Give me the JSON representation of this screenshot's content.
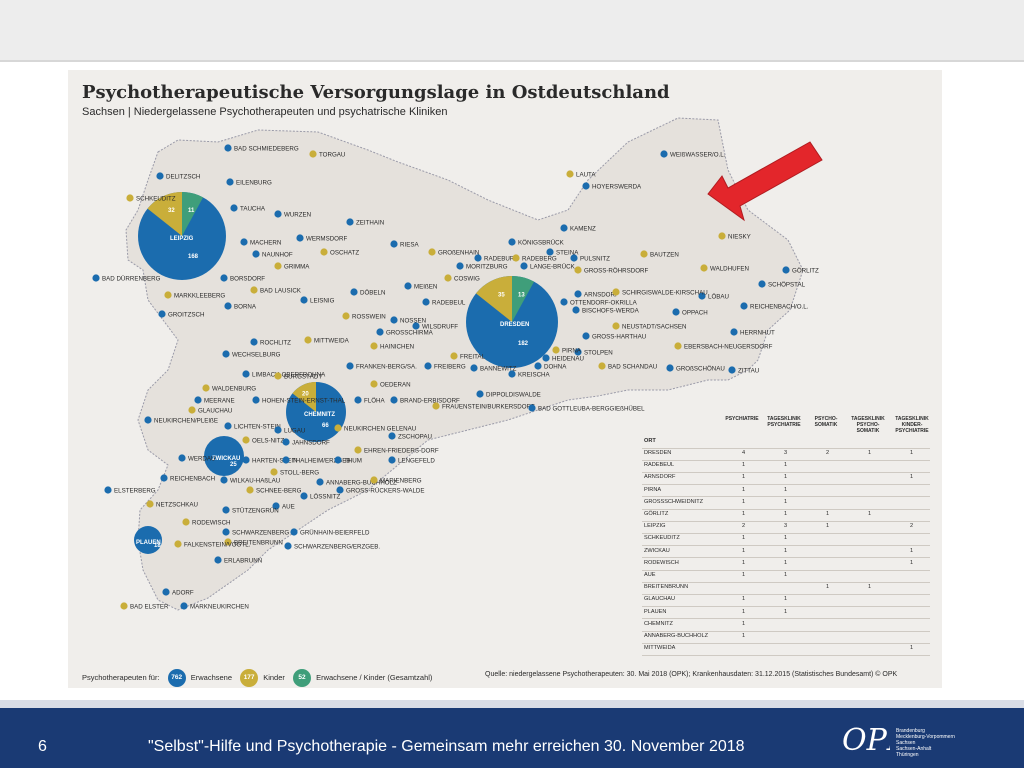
{
  "map": {
    "title": "Psychotherapeutische Versorgungslage in Ostdeutschland",
    "subtitle": "Sachsen | Niedergelassene Psychotherapeuten und psychatrische Kliniken",
    "colors": {
      "erwachsene": "#1b6cae",
      "kinder": "#c9ae3a",
      "gesamt": "#3f9e7a",
      "land": "#e5e1dc",
      "border": "#9a9aa8",
      "bg": "#f0eeeb"
    }
  },
  "cities": [
    {
      "name": "BAD SCHMIEDEBERG"
    },
    {
      "name": "TORGAU"
    },
    {
      "name": "DELITZSCH"
    },
    {
      "name": "EILENBURG"
    },
    {
      "name": "SCHKEUDITZ"
    },
    {
      "name": "TAUCHA"
    },
    {
      "name": "WURZEN"
    },
    {
      "name": "LEIPZIG"
    },
    {
      "name": "MACHERN"
    },
    {
      "name": "NAUNHOF"
    },
    {
      "name": "GRIMMA"
    },
    {
      "name": "BORSDORF"
    },
    {
      "name": "BAD DÜRRENBERG"
    },
    {
      "name": "MARKKLEEBERG"
    },
    {
      "name": "BORNA"
    },
    {
      "name": "GROITZSCH"
    },
    {
      "name": "BAD LAUSICK"
    },
    {
      "name": "LEISNIG"
    },
    {
      "name": "WERMSDORF"
    },
    {
      "name": "OSCHATZ"
    },
    {
      "name": "ZEITHAIN"
    },
    {
      "name": "RIESA"
    },
    {
      "name": "GROßENHAIN"
    },
    {
      "name": "KÖNIGSBRÜCK"
    },
    {
      "name": "KAMENZ"
    },
    {
      "name": "LAUTA"
    },
    {
      "name": "HOYERSWERDA"
    },
    {
      "name": "WEIßWASSER/O.L."
    },
    {
      "name": "NIESKY"
    },
    {
      "name": "GÖRLITZ"
    },
    {
      "name": "SCHÖPSTAL"
    },
    {
      "name": "WALDHUFEN"
    },
    {
      "name": "REICHENBACH/O.L."
    },
    {
      "name": "LÖBAU"
    },
    {
      "name": "BAUTZEN"
    },
    {
      "name": "STEINA"
    },
    {
      "name": "PULSNITZ"
    },
    {
      "name": "GROSS-RÖHRSDORF"
    },
    {
      "name": "ARNSDORF"
    },
    {
      "name": "OTTENDORF-OKRILLA"
    },
    {
      "name": "SCHIRGISWALDE-KIRSCHAU"
    },
    {
      "name": "OPPACH"
    },
    {
      "name": "HERRNHUT"
    },
    {
      "name": "EBERSBACH-NEUGERSDORF"
    },
    {
      "name": "GROßSCHÖNAU"
    },
    {
      "name": "ZITTAU"
    },
    {
      "name": "DRESDEN"
    },
    {
      "name": "MORITZBURG"
    },
    {
      "name": "RADEBURG"
    },
    {
      "name": "RADEBERG"
    },
    {
      "name": "LANGE-BRÜCK"
    },
    {
      "name": "MEIßEN"
    },
    {
      "name": "COSWIG"
    },
    {
      "name": "RADEBEUL"
    },
    {
      "name": "BISCHOFS-WERDA"
    },
    {
      "name": "NEUSTADT/SACHSEN"
    },
    {
      "name": "GROSS-HARTHAU"
    },
    {
      "name": "STOLPEN"
    },
    {
      "name": "PIRNA"
    },
    {
      "name": "HEIDENAU"
    },
    {
      "name": "DOHNA"
    },
    {
      "name": "BAD SCHANDAU"
    },
    {
      "name": "KREISCHA"
    },
    {
      "name": "BANNEWITZ"
    },
    {
      "name": "FREITAL"
    },
    {
      "name": "WILSDRUFF"
    },
    {
      "name": "DIPPOLDISWALDE"
    },
    {
      "name": "FRAUENSTEIN/BURKERSDORF"
    },
    {
      "name": "BAD GOTTLEUBA-BERGGIEßHÜBEL"
    },
    {
      "name": "DÖBELN"
    },
    {
      "name": "ROSSWEIN"
    },
    {
      "name": "NOSSEN"
    },
    {
      "name": "GROSSCHIRMA"
    },
    {
      "name": "HAINICHEN"
    },
    {
      "name": "FREIBERG"
    },
    {
      "name": "ROCHLITZ"
    },
    {
      "name": "MITTWEIDA"
    },
    {
      "name": "WECHSELBURG"
    },
    {
      "name": "FRANKEN-BERG/SA."
    },
    {
      "name": "OEDERAN"
    },
    {
      "name": "BRAND-ERBISDORF"
    },
    {
      "name": "LIMBACH-OBERFROHNA"
    },
    {
      "name": "BURGSTÄDT"
    },
    {
      "name": "CHEMNITZ"
    },
    {
      "name": "FLÖHA"
    },
    {
      "name": "WALDENBURG"
    },
    {
      "name": "HOHEN-STEIN-ERNST-THAL"
    },
    {
      "name": "MEERANE"
    },
    {
      "name": "GLAUCHAU"
    },
    {
      "name": "NEUKIRCHEN/PLEIßE"
    },
    {
      "name": "LICHTEN-STEIN"
    },
    {
      "name": "OELS-NITZ"
    },
    {
      "name": "LUGAU"
    },
    {
      "name": "JAHNSDORF"
    },
    {
      "name": "NEUKIRCHEN GELENAU"
    },
    {
      "name": "ZSCHOPAU"
    },
    {
      "name": "WERDAU"
    },
    {
      "name": "ZWICKAU"
    },
    {
      "name": "HARTEN-STEIN"
    },
    {
      "name": "THALHEIM/ERZGEB."
    },
    {
      "name": "EHREN-FRIEDERS-DORF"
    },
    {
      "name": "LENGEFELD"
    },
    {
      "name": "WILKAU-HAßLAU"
    },
    {
      "name": "STOLL-BERG"
    },
    {
      "name": "THUM"
    },
    {
      "name": "ANNABERG-BUCHHOLZ"
    },
    {
      "name": "MARIENBERG"
    },
    {
      "name": "GROSS-RÜCKERS-WALDE"
    },
    {
      "name": "REICHENBACH"
    },
    {
      "name": "SCHNEE-BERG"
    },
    {
      "name": "LÖSSNITZ"
    },
    {
      "name": "ELSTERBERG"
    },
    {
      "name": "NETZSCHKAU"
    },
    {
      "name": "AUE"
    },
    {
      "name": "STÜTZENGRÜN"
    },
    {
      "name": "RODEWISCH"
    },
    {
      "name": "SCHWARZENBERG"
    },
    {
      "name": "GRÜNHAIN-BEIERFELD"
    },
    {
      "name": "BREITENBRUNN"
    },
    {
      "name": "SCHWARZENBERG/ERZGEB."
    },
    {
      "name": "PLAUEN"
    },
    {
      "name": "FALKENSTEIN/VOGTL."
    },
    {
      "name": "ERLABRUNN"
    },
    {
      "name": "ADORF"
    },
    {
      "name": "BAD ELSTER"
    },
    {
      "name": "MARKNEUKIRCHEN"
    }
  ],
  "bubbles": [
    {
      "city": "LEIPZIG",
      "erwachsene": "168",
      "kinder": "32",
      "gesamt": "11"
    },
    {
      "city": "DRESDEN",
      "erwachsene": "182",
      "kinder": "35",
      "gesamt": "13"
    },
    {
      "city": "CHEMNITZ",
      "erwachsene": "66",
      "kinder": "20",
      "gesamt": ""
    },
    {
      "city": "ZWICKAU",
      "erwachsene": "25",
      "kinder": "",
      "gesamt": ""
    },
    {
      "city": "PLAUEN",
      "erwachsene": "18",
      "kinder": "",
      "gesamt": ""
    }
  ],
  "table": {
    "headers": [
      "ORT",
      "PSYCHIATRIE",
      "TAGESKLINIK PSYCHIATRIE",
      "PSYCHO-SOMATIK",
      "TAGESKLINIK PSYCHO-SOMATIK",
      "TAGESKLINIK KINDER-PSYCHIATRIE"
    ],
    "rows": [
      [
        "DRESDEN",
        "4",
        "3",
        "2",
        "1",
        "1"
      ],
      [
        "RADEBEUL",
        "1",
        "1",
        "",
        "",
        ""
      ],
      [
        "ARNSDORF",
        "1",
        "1",
        "",
        "",
        "1"
      ],
      [
        "PIRNA",
        "1",
        "1",
        "",
        "",
        ""
      ],
      [
        "GROSSSCHWEIDNITZ",
        "1",
        "1",
        "",
        "",
        ""
      ],
      [
        "GÖRLITZ",
        "1",
        "1",
        "1",
        "1",
        ""
      ],
      [
        "LEIPZIG",
        "2",
        "3",
        "1",
        "",
        "2"
      ],
      [
        "SCHKEUDITZ",
        "1",
        "1",
        "",
        "",
        ""
      ],
      [
        "ZWICKAU",
        "1",
        "1",
        "",
        "",
        "1"
      ],
      [
        "RODEWISCH",
        "1",
        "1",
        "",
        "",
        "1"
      ],
      [
        "AUE",
        "1",
        "1",
        "",
        "",
        ""
      ],
      [
        "BREITENBRUNN",
        "",
        "",
        "1",
        "1",
        ""
      ],
      [
        "GLAUCHAU",
        "1",
        "1",
        "",
        "",
        ""
      ],
      [
        "PLAUEN",
        "1",
        "1",
        "",
        "",
        ""
      ],
      [
        "CHEMNITZ",
        "1",
        "",
        "",
        "",
        ""
      ],
      [
        "ANNABERG-BUCHHOLZ",
        "1",
        "",
        "",
        "",
        ""
      ],
      [
        "MITTWEIDA",
        "",
        "",
        "",
        "",
        "1"
      ]
    ]
  },
  "legend": {
    "prefix": "Psychotherapeuten für:",
    "erwachsene_count": "762",
    "erwachsene_label": "Erwachsene",
    "kinder_count": "177",
    "kinder_label": "Kinder",
    "gesamt_count": "52",
    "gesamt_label": "Erwachsene / Kinder",
    "gesamt_note": "(Gesamtzahl)"
  },
  "source": "Quelle: niedergelassene Psychotherapeuten: 30. Mai 2018 (OPK); Krankenhausdaten: 31.12.2015 (Statistisches Bundesamt)   © OPK",
  "footer": {
    "slide_number": "6",
    "text": "\"Selbst\"-Hilfe und Psychotherapie - Gemeinsam mehr erreichen 30. November 2018",
    "logo_text": "OPK",
    "logo_lines": [
      "Brandenburg",
      "Mecklenburg-Vorpommern",
      "Sachsen",
      "Sachsen-Anhalt",
      "Thüringen"
    ]
  },
  "arrow": {
    "color": "#e3262b",
    "icon": "arrow-pointer-icon"
  }
}
